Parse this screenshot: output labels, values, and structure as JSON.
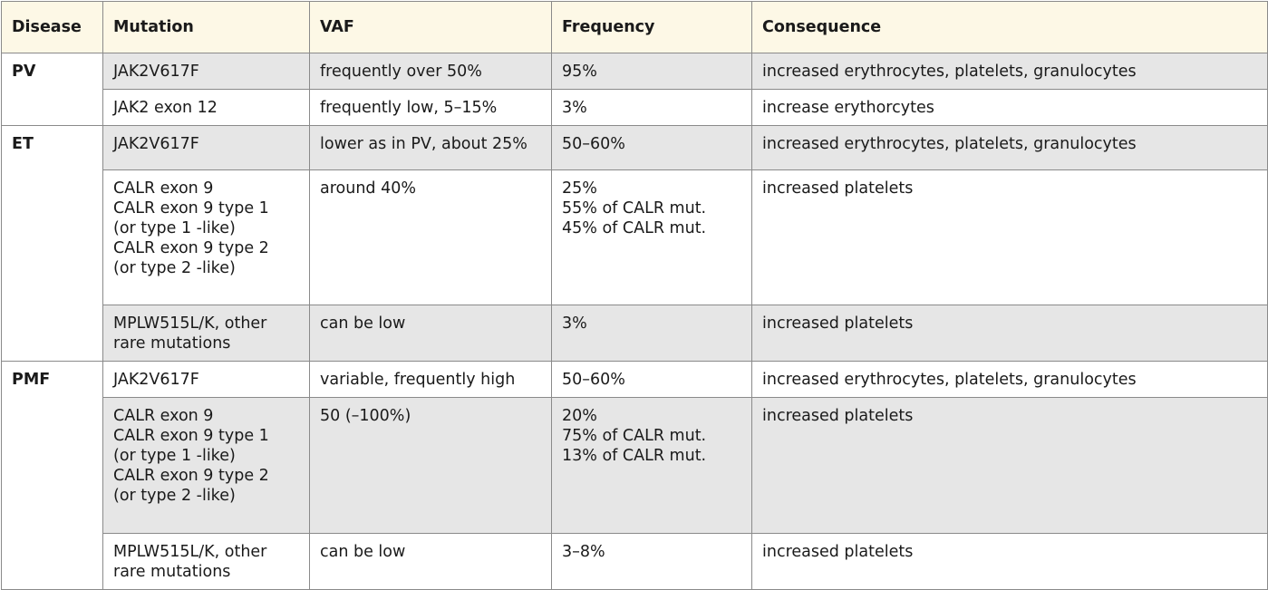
{
  "table": {
    "headers": [
      "Disease",
      "Mutation",
      "VAF",
      "Frequency",
      "Consequence"
    ],
    "groups": [
      {
        "disease": "PV",
        "rows": [
          {
            "mutation": "JAK2V617F",
            "vaf": "frequently over 50%",
            "frequency": "95%",
            "consequence": "increased erythrocytes, platelets, granulocytes",
            "shaded": true,
            "height": 40
          },
          {
            "mutation": "JAK2 exon 12",
            "vaf": "frequently low, 5–15%",
            "frequency": "3%",
            "consequence": "increase erythorcytes",
            "shaded": false,
            "height": 40
          }
        ]
      },
      {
        "disease": "ET",
        "rows": [
          {
            "mutation": "JAK2V617F",
            "vaf": "lower as in PV, about 25%",
            "frequency": "50–60%",
            "consequence": "increased erythrocytes, platelets, granulocytes",
            "shaded": true,
            "height": 49
          },
          {
            "mutation": "CALR exon 9\nCALR exon 9 type 1\n(or type 1 -like)\nCALR exon 9 type 2\n(or type 2 -like)",
            "vaf": "around 40%",
            "frequency": "25%\n55% of CALR mut.\n45% of CALR mut.",
            "consequence": "increased platelets",
            "shaded": false,
            "height": 149
          },
          {
            "mutation": "MPLW515L/K, other\nrare mutations",
            "vaf": "can be low",
            "frequency": "3%",
            "consequence": "increased platelets",
            "shaded": true,
            "height": 62
          }
        ]
      },
      {
        "disease": "PMF",
        "rows": [
          {
            "mutation": "JAK2V617F",
            "vaf": "variable, frequently high",
            "frequency": "50–60%",
            "consequence": "increased erythrocytes, platelets, granulocytes",
            "shaded": false,
            "height": 39
          },
          {
            "mutation": "CALR exon 9\nCALR exon 9 type 1\n(or type 1 -like)\nCALR exon 9 type 2\n(or type 2 -like)",
            "vaf": "50 (–100%)",
            "frequency": "20%\n75% of CALR mut.\n13% of CALR mut.",
            "consequence": "increased platelets",
            "shaded": true,
            "height": 150
          },
          {
            "mutation": "MPLW515L/K, other\nrare mutations",
            "vaf": "can be low",
            "frequency": "3–8%",
            "consequence": "increased platelets",
            "shaded": false,
            "height": 61
          }
        ]
      }
    ]
  }
}
